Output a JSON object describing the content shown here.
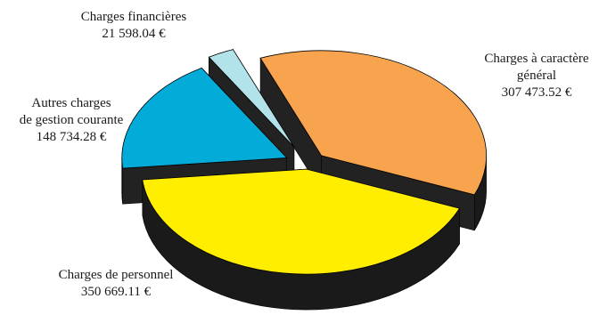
{
  "chart_data": {
    "type": "pie",
    "style": "3d-exploded",
    "legend": "none",
    "slices": [
      {
        "label_lines": [
          "Charges à caractère",
          "général"
        ],
        "value_text": "307 473.52 €",
        "value": 307473.52,
        "color": "#f8a44f"
      },
      {
        "label_lines": [
          "Charges de personnel"
        ],
        "value_text": "350 669.11 €",
        "value": 350669.11,
        "color": "#ffee00"
      },
      {
        "label_lines": [
          "Autres charges",
          "de gestion courante"
        ],
        "value_text": "148 734.28 €",
        "value": 148734.28,
        "color": "#03acd8"
      },
      {
        "label_lines": [
          "Charges financières"
        ],
        "value_text": "21 598.04 €",
        "value": 21598.04,
        "color": "#b2e3ea"
      }
    ],
    "side_color": "#1a1a1a"
  }
}
